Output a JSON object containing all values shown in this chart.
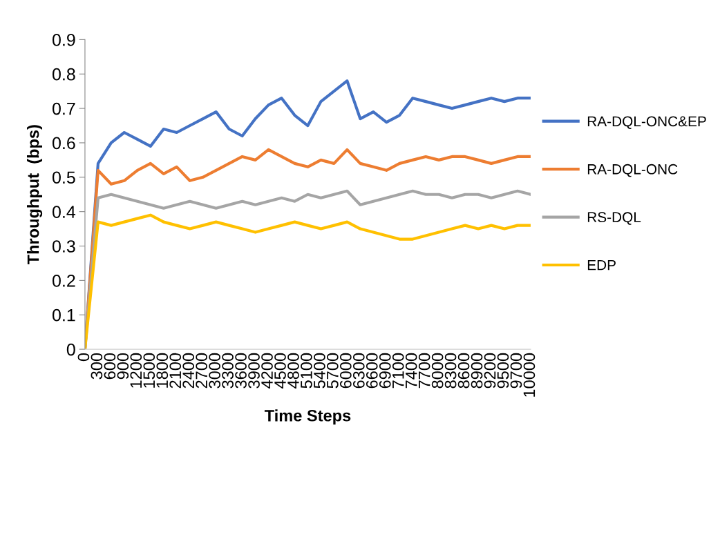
{
  "chart_data": {
    "type": "line",
    "xlabel": "Time Steps",
    "ylabel": "Throughput  (bps)",
    "categories": [
      "0",
      "300",
      "600",
      "900",
      "1200",
      "1500",
      "1800",
      "2100",
      "2400",
      "2700",
      "3000",
      "3300",
      "3600",
      "3900",
      "4200",
      "4500",
      "4800",
      "5100",
      "5400",
      "5700",
      "6000",
      "6300",
      "6600",
      "6900",
      "7100",
      "7400",
      "7700",
      "8000",
      "8300",
      "8600",
      "8900",
      "9200",
      "9500",
      "9700",
      "10000"
    ],
    "series": [
      {
        "name": "RA-DQL-ONC&EP",
        "color": "#4472c4",
        "values": [
          0,
          0.54,
          0.6,
          0.63,
          0.61,
          0.59,
          0.64,
          0.63,
          0.65,
          0.67,
          0.69,
          0.64,
          0.62,
          0.67,
          0.71,
          0.73,
          0.68,
          0.65,
          0.72,
          0.75,
          0.78,
          0.67,
          0.69,
          0.66,
          0.68,
          0.73,
          0.72,
          0.71,
          0.7,
          0.71,
          0.72,
          0.73,
          0.72,
          0.73,
          0.73
        ]
      },
      {
        "name": "RA-DQL-ONC",
        "color": "#ed7d31",
        "values": [
          0,
          0.52,
          0.48,
          0.49,
          0.52,
          0.54,
          0.51,
          0.53,
          0.49,
          0.5,
          0.52,
          0.54,
          0.56,
          0.55,
          0.58,
          0.56,
          0.54,
          0.53,
          0.55,
          0.54,
          0.58,
          0.54,
          0.53,
          0.52,
          0.54,
          0.55,
          0.56,
          0.55,
          0.56,
          0.56,
          0.55,
          0.54,
          0.55,
          0.56,
          0.56
        ]
      },
      {
        "name": "RS-DQL",
        "color": "#a5a5a5",
        "values": [
          0,
          0.44,
          0.45,
          0.44,
          0.43,
          0.42,
          0.41,
          0.42,
          0.43,
          0.42,
          0.41,
          0.42,
          0.43,
          0.42,
          0.43,
          0.44,
          0.43,
          0.45,
          0.44,
          0.45,
          0.46,
          0.42,
          0.43,
          0.44,
          0.45,
          0.46,
          0.45,
          0.45,
          0.44,
          0.45,
          0.45,
          0.44,
          0.45,
          0.46,
          0.45
        ]
      },
      {
        "name": "EDP",
        "color": "#ffc000",
        "values": [
          0,
          0.37,
          0.36,
          0.37,
          0.38,
          0.39,
          0.37,
          0.36,
          0.35,
          0.36,
          0.37,
          0.36,
          0.35,
          0.34,
          0.35,
          0.36,
          0.37,
          0.36,
          0.35,
          0.36,
          0.37,
          0.35,
          0.34,
          0.33,
          0.32,
          0.32,
          0.33,
          0.34,
          0.35,
          0.36,
          0.35,
          0.36,
          0.35,
          0.36,
          0.36
        ]
      }
    ],
    "ylim": [
      0,
      0.9
    ],
    "yticks": [
      0,
      0.1,
      0.2,
      0.3,
      0.4,
      0.5,
      0.6,
      0.7,
      0.8,
      0.9
    ],
    "grid": false,
    "legend": "right",
    "marker": "none",
    "line_style": "solid"
  }
}
